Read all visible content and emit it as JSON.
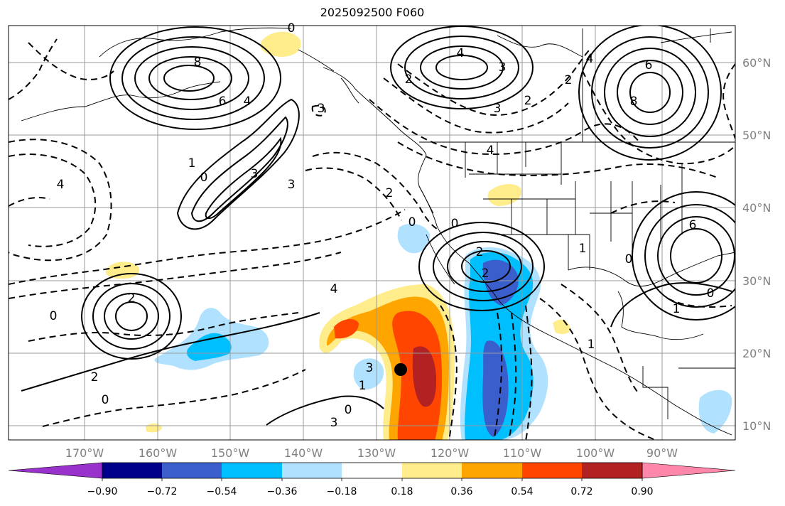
{
  "title": "2025092500 F060",
  "map": {
    "lon_labels": [
      "170°W",
      "160°W",
      "150°W",
      "140°W",
      "130°W",
      "120°W",
      "110°W",
      "100°W",
      "90°W"
    ],
    "lat_labels": [
      "60°N",
      "50°N",
      "40°N",
      "30°N",
      "20°N",
      "10°N"
    ],
    "gridlines": true,
    "contour_labels": [
      "0",
      "4",
      "6",
      "8",
      "6",
      "4",
      "3",
      "1",
      "0",
      "3",
      "2",
      "4",
      "3",
      "2",
      "6",
      "8",
      "4",
      "3",
      "2",
      "4",
      "2",
      "0",
      "2",
      "0",
      "3",
      "1",
      "0",
      "3",
      "0",
      "0",
      "2",
      "2",
      "1",
      "0",
      "0",
      "1",
      "1",
      "2",
      "3",
      "4"
    ],
    "marker": "black-dot"
  },
  "colorbar": {
    "tick_labels": [
      "−0.90",
      "−0.72",
      "−0.54",
      "−0.36",
      "−0.18",
      "0.18",
      "0.36",
      "0.54",
      "0.72",
      "0.90"
    ],
    "colors": [
      "#9932cc",
      "#00008b",
      "#3a5fcd",
      "#00bfff",
      "#b0e2ff",
      "#ffffff",
      "#ffec8b",
      "#ffa500",
      "#ff4500",
      "#b22222",
      "#ff88aa"
    ],
    "extend": "both"
  }
}
